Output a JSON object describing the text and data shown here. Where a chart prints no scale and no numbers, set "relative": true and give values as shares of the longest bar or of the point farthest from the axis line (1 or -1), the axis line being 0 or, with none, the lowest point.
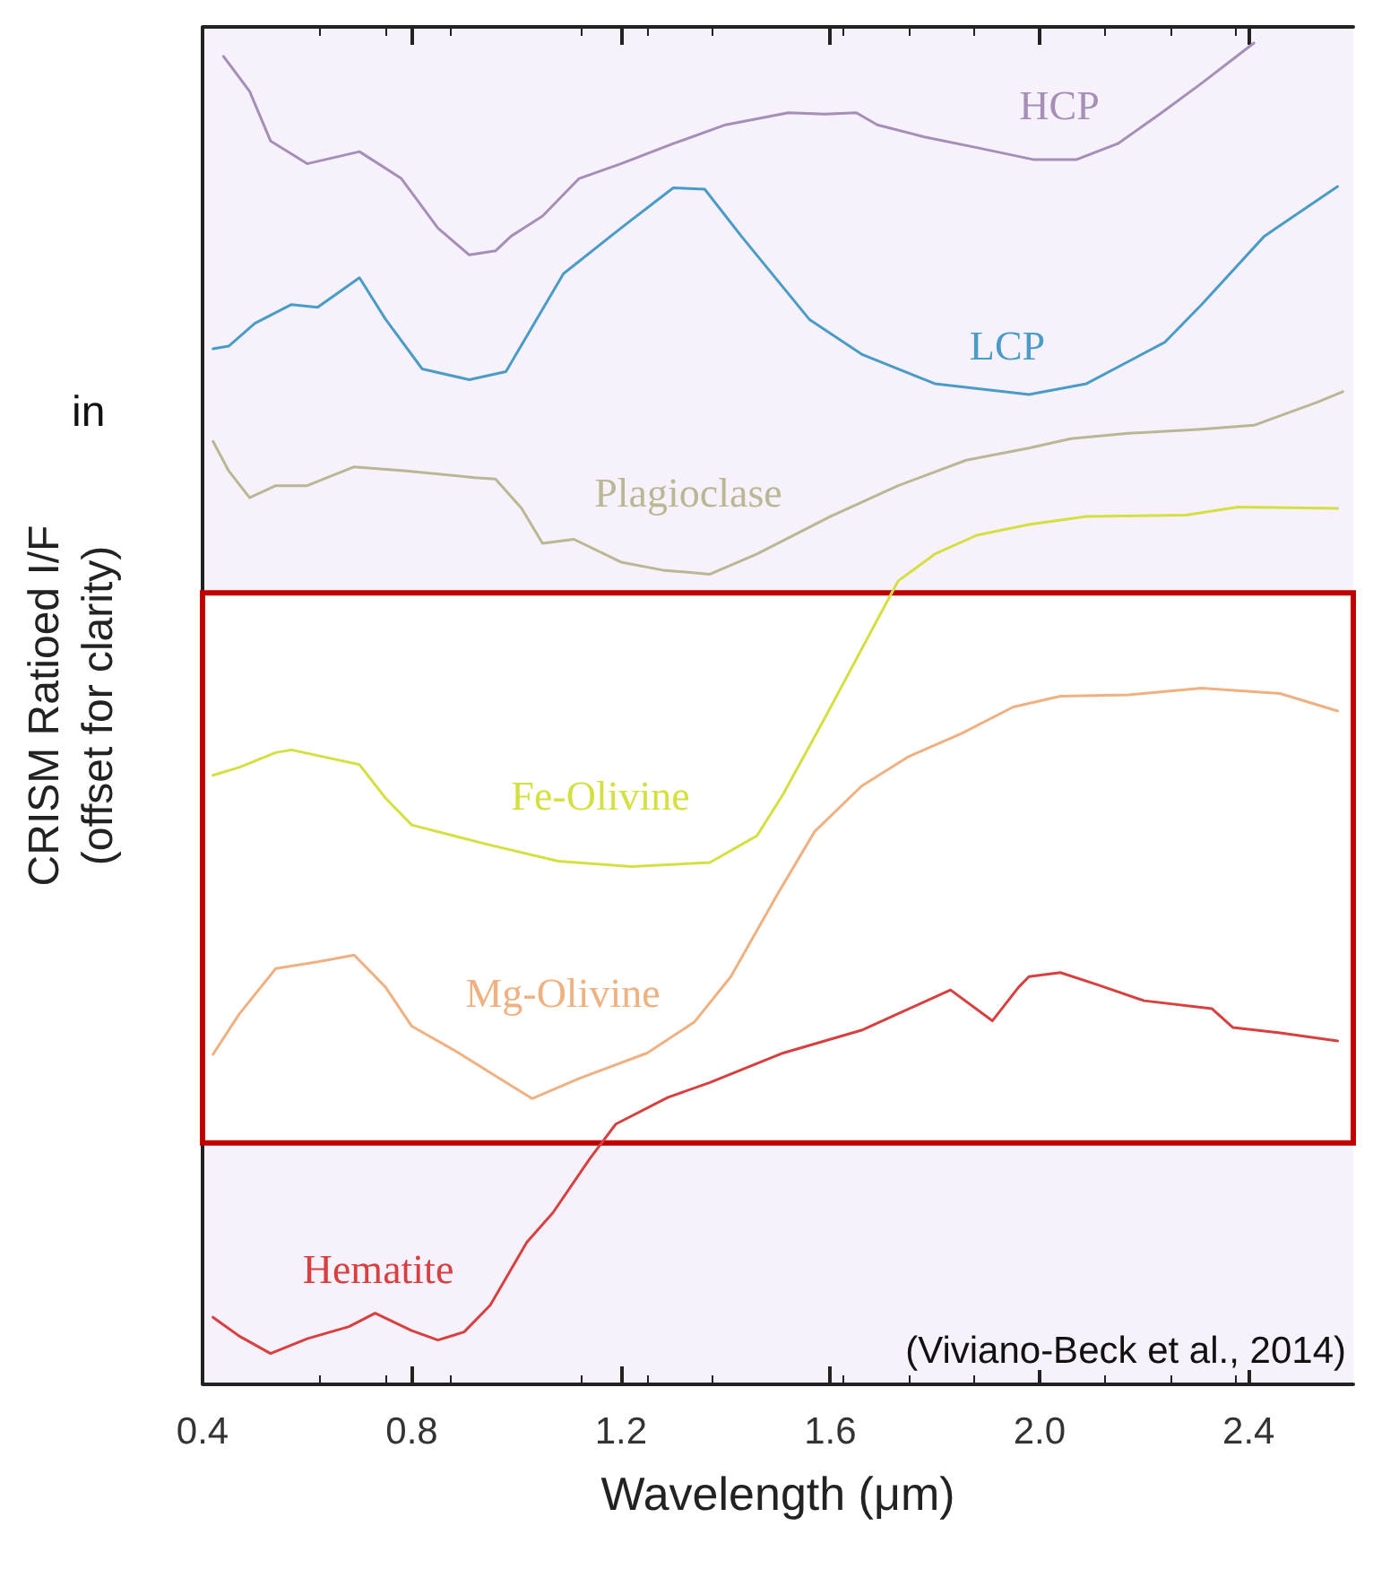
{
  "chart_data": {
    "type": "line",
    "relative": true,
    "xlabel": "Wavelength (μm)",
    "ylabel": "CRISM Ratioed I/F\n(offset for clarity)",
    "xlim": [
      0.4,
      2.6
    ],
    "xticks": [
      0.4,
      0.8,
      1.2,
      1.6,
      {
        "value": 2,
        "label": "2.0"
      },
      2.4
    ],
    "tick_labels": "x",
    "grid": false,
    "legend": false,
    "marker": "none",
    "line_style": "solid",
    "series": [
      {
        "name": "HCP",
        "color": "#a58fb8",
        "x": [
          0.44,
          0.49,
          0.53,
          0.6,
          0.7,
          0.78,
          0.85,
          0.91,
          0.96,
          0.99,
          1.05,
          1.12,
          1.2,
          1.3,
          1.4,
          1.52,
          1.59,
          1.65,
          1.69,
          1.78,
          1.88,
          1.99,
          2.07,
          2.15,
          2.23,
          2.31,
          2.41
        ],
        "values": [
          0.99,
          0.964,
          0.927,
          0.91,
          0.919,
          0.899,
          0.862,
          0.842,
          0.845,
          0.856,
          0.871,
          0.899,
          0.91,
          0.925,
          0.939,
          0.948,
          0.947,
          0.948,
          0.939,
          0.93,
          0.922,
          0.913,
          0.913,
          0.925,
          0.947,
          0.97,
          1.0
        ]
      },
      {
        "name": "LCP",
        "color": "#4a9cc8",
        "x": [
          0.42,
          0.45,
          0.5,
          0.57,
          0.62,
          0.7,
          0.75,
          0.82,
          0.91,
          0.98,
          1.09,
          1.2,
          1.3,
          1.36,
          1.43,
          1.56,
          1.66,
          1.8,
          1.98,
          2.09,
          2.24,
          2.31,
          2.43,
          2.57
        ],
        "values": [
          0.772,
          0.774,
          0.791,
          0.805,
          0.803,
          0.825,
          0.794,
          0.757,
          0.749,
          0.755,
          0.828,
          0.862,
          0.892,
          0.891,
          0.856,
          0.794,
          0.768,
          0.746,
          0.738,
          0.746,
          0.777,
          0.805,
          0.856,
          0.893
        ]
      },
      {
        "name": "Plagioclase",
        "color": "#b8b894",
        "x": [
          0.42,
          0.45,
          0.49,
          0.54,
          0.6,
          0.69,
          0.79,
          0.92,
          0.96,
          1.01,
          1.05,
          1.11,
          1.2,
          1.28,
          1.37,
          1.46,
          1.6,
          1.73,
          1.86,
          1.98,
          2.06,
          2.17,
          2.31,
          2.41,
          2.53,
          2.58
        ],
        "values": [
          0.703,
          0.681,
          0.661,
          0.67,
          0.67,
          0.684,
          0.681,
          0.676,
          0.675,
          0.653,
          0.627,
          0.63,
          0.613,
          0.607,
          0.604,
          0.619,
          0.647,
          0.67,
          0.689,
          0.698,
          0.705,
          0.709,
          0.712,
          0.715,
          0.732,
          0.74
        ]
      },
      {
        "name": "Fe-Olivine",
        "color": "#d4e040",
        "x": [
          0.42,
          0.47,
          0.54,
          0.57,
          0.7,
          0.75,
          0.8,
          0.94,
          1.08,
          1.22,
          1.37,
          1.46,
          1.51,
          1.59,
          1.69,
          1.73,
          1.8,
          1.88,
          1.98,
          2.09,
          2.28,
          2.38,
          2.57
        ],
        "values": [
          0.454,
          0.46,
          0.471,
          0.473,
          0.462,
          0.437,
          0.417,
          0.403,
          0.39,
          0.386,
          0.389,
          0.409,
          0.44,
          0.497,
          0.57,
          0.599,
          0.619,
          0.633,
          0.641,
          0.647,
          0.648,
          0.654,
          0.653
        ]
      },
      {
        "name": "Mg-Olivine",
        "color": "#f0b080",
        "x": [
          0.42,
          0.47,
          0.54,
          0.62,
          0.69,
          0.75,
          0.8,
          0.89,
          0.96,
          1.03,
          1.12,
          1.25,
          1.34,
          1.41,
          1.5,
          1.57,
          1.66,
          1.75,
          1.85,
          1.95,
          2.04,
          2.17,
          2.31,
          2.46,
          2.57
        ],
        "values": [
          0.246,
          0.276,
          0.31,
          0.315,
          0.32,
          0.296,
          0.267,
          0.247,
          0.23,
          0.213,
          0.228,
          0.247,
          0.27,
          0.304,
          0.366,
          0.412,
          0.446,
          0.468,
          0.485,
          0.505,
          0.513,
          0.514,
          0.519,
          0.515,
          0.502
        ]
      },
      {
        "name": "Hematite",
        "color": "#d84040",
        "x": [
          0.42,
          0.47,
          0.53,
          0.6,
          0.68,
          0.73,
          0.8,
          0.85,
          0.9,
          0.95,
          1.02,
          1.07,
          1.14,
          1.19,
          1.29,
          1.37,
          1.51,
          1.66,
          1.83,
          1.91,
          1.96,
          1.98,
          2.04,
          2.11,
          2.2,
          2.33,
          2.37,
          2.46,
          2.57
        ],
        "values": [
          0.05,
          0.036,
          0.023,
          0.034,
          0.043,
          0.053,
          0.04,
          0.033,
          0.039,
          0.059,
          0.106,
          0.128,
          0.168,
          0.194,
          0.214,
          0.225,
          0.247,
          0.264,
          0.294,
          0.271,
          0.296,
          0.304,
          0.307,
          0.298,
          0.286,
          0.28,
          0.266,
          0.262,
          0.256
        ]
      }
    ],
    "bands": [
      {
        "axis": "y",
        "from": 0.18,
        "to": 0.59,
        "color": "#c00000"
      }
    ],
    "annotations": [
      "(Viviano-Beck et al., 2014)",
      "in"
    ]
  }
}
